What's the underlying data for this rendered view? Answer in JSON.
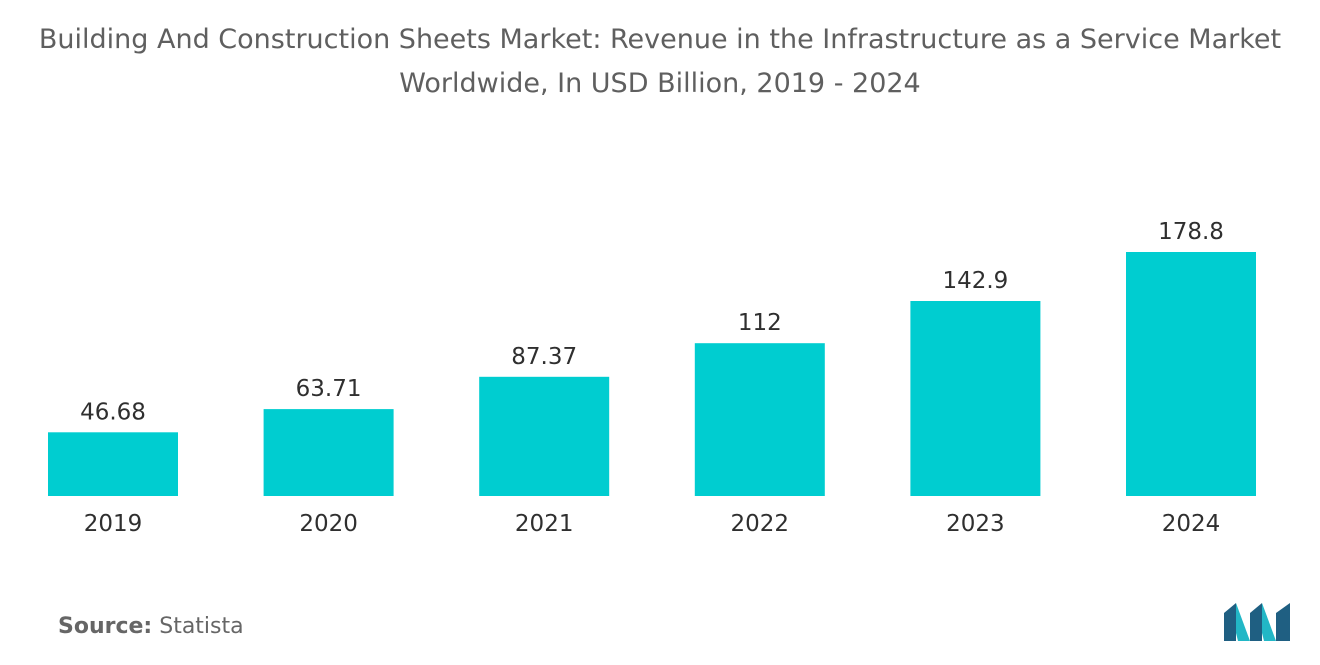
{
  "title_line1": "Building And Construction Sheets Market: Revenue in the Infrastructure as a Service Market",
  "title_line2": "Worldwide, In USD Billion, 2019 - 2024",
  "source_label": "Source:",
  "source_value": "Statista",
  "logo_icon": "mordor-intelligence-logo-icon",
  "colors": {
    "bar": "#00cdd0",
    "logo_dark": "#1f5f82",
    "logo_light": "#22b7c6"
  },
  "chart_data": {
    "type": "bar",
    "title": "Building And Construction Sheets Market: Revenue in the Infrastructure as a Service Market Worldwide, In USD Billion, 2019 - 2024",
    "categories": [
      "2019",
      "2020",
      "2021",
      "2022",
      "2023",
      "2024"
    ],
    "values": [
      46.68,
      63.71,
      87.37,
      112,
      142.9,
      178.8
    ],
    "value_labels": [
      "46.68",
      "63.71",
      "87.37",
      "112",
      "142.9",
      "178.8"
    ],
    "xlabel": "",
    "ylabel": "",
    "ylim": [
      0,
      178.8
    ],
    "grid": false,
    "legend": "none"
  }
}
